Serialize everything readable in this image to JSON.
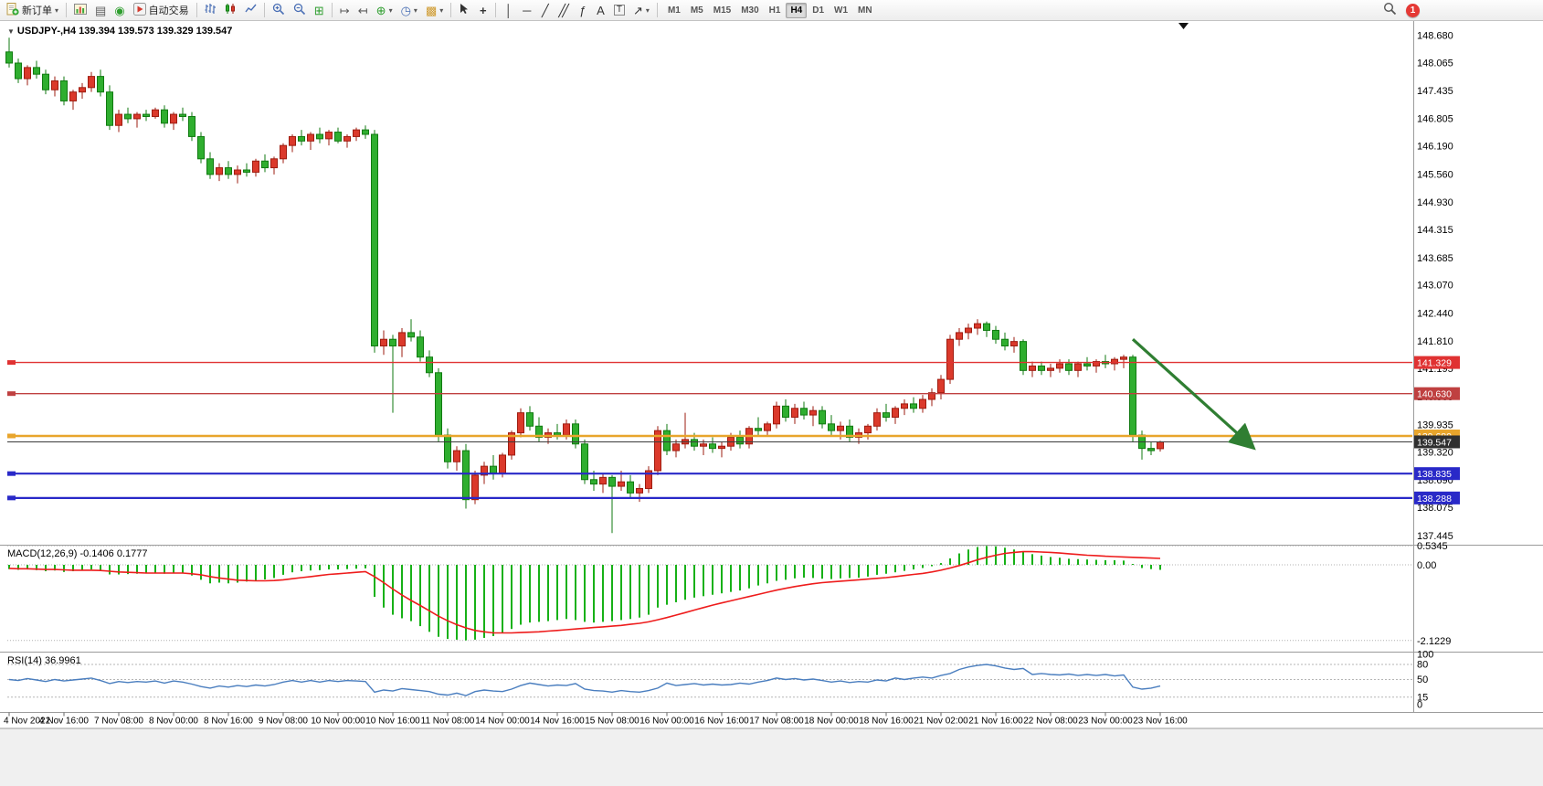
{
  "toolbar": {
    "new_order_label": "新订单",
    "autotrading_label": "自动交易",
    "timeframes": [
      "M1",
      "M5",
      "M15",
      "M30",
      "H1",
      "H4",
      "D1",
      "W1",
      "MN"
    ],
    "active_timeframe": "H4",
    "notification_count": "1"
  },
  "icons": {
    "caret": "▾",
    "collapse_triangle": "▼",
    "print": "▤",
    "sound": "◉",
    "tile": "⊞",
    "auto_scroll": "↦",
    "chart_shift": "↤",
    "indicators": "⊕",
    "clock": "◷",
    "template": "▩",
    "crosshair": "+",
    "vline": "│",
    "hline": "─",
    "trendline": "╱",
    "channel": "╱╱",
    "fibo": "ƒ",
    "text": "A",
    "text_label": "T",
    "arrow_tool": "↗"
  },
  "chart": {
    "title_line": "USDJPY-,H4 139.394 139.573 139.329 139.547",
    "symbol": "USDJPY-",
    "period": "H4"
  },
  "indicators": {
    "macd_label": "MACD(12,26,9) -0.1406 0.1777",
    "rsi_label": "RSI(14) 36.9961"
  },
  "chart_data": {
    "type": "candlestick",
    "symbol": "USDJPY-",
    "period": "H4",
    "ohlc_current": {
      "open": 139.394,
      "high": 139.573,
      "low": 139.329,
      "close": 139.547
    },
    "price_range": {
      "min": 137.3,
      "max": 148.85
    },
    "price_axis_labels": [
      "148.680",
      "148.065",
      "147.435",
      "146.805",
      "146.190",
      "145.560",
      "144.930",
      "144.315",
      "143.685",
      "143.070",
      "142.440",
      "141.810",
      "141.195",
      "140.565",
      "139.935",
      "139.320",
      "138.690",
      "138.075",
      "137.445"
    ],
    "candles": [
      [
        148.3,
        148.62,
        147.95,
        148.05
      ],
      [
        148.05,
        148.15,
        147.6,
        147.7
      ],
      [
        147.7,
        148,
        147.55,
        147.95
      ],
      [
        147.95,
        148.1,
        147.7,
        147.8
      ],
      [
        147.8,
        147.9,
        147.35,
        147.45
      ],
      [
        147.45,
        147.75,
        147.3,
        147.65
      ],
      [
        147.65,
        147.75,
        147.1,
        147.2
      ],
      [
        147.2,
        147.45,
        147,
        147.4
      ],
      [
        147.4,
        147.6,
        147.25,
        147.5
      ],
      [
        147.5,
        147.85,
        147.4,
        147.75
      ],
      [
        147.75,
        147.9,
        147.3,
        147.4
      ],
      [
        147.4,
        147.55,
        146.55,
        146.65
      ],
      [
        146.65,
        147,
        146.5,
        146.9
      ],
      [
        146.9,
        147.05,
        146.7,
        146.8
      ],
      [
        146.8,
        146.95,
        146.6,
        146.9
      ],
      [
        146.9,
        147,
        146.75,
        146.85
      ],
      [
        146.85,
        147.05,
        146.8,
        147
      ],
      [
        147,
        147.1,
        146.6,
        146.7
      ],
      [
        146.7,
        146.95,
        146.55,
        146.9
      ],
      [
        146.9,
        147.05,
        146.75,
        146.85
      ],
      [
        146.85,
        146.95,
        146.3,
        146.4
      ],
      [
        146.4,
        146.5,
        145.8,
        145.9
      ],
      [
        145.9,
        146.05,
        145.45,
        145.55
      ],
      [
        145.55,
        145.8,
        145.4,
        145.7
      ],
      [
        145.7,
        145.85,
        145.45,
        145.55
      ],
      [
        145.55,
        145.75,
        145.35,
        145.65
      ],
      [
        145.65,
        145.8,
        145.5,
        145.6
      ],
      [
        145.6,
        145.9,
        145.5,
        145.85
      ],
      [
        145.85,
        146,
        145.6,
        145.7
      ],
      [
        145.7,
        145.95,
        145.55,
        145.9
      ],
      [
        145.9,
        146.25,
        145.8,
        146.2
      ],
      [
        146.2,
        146.45,
        146.05,
        146.4
      ],
      [
        146.4,
        146.55,
        146.2,
        146.3
      ],
      [
        146.3,
        146.5,
        146.1,
        146.45
      ],
      [
        146.45,
        146.6,
        146.25,
        146.35
      ],
      [
        146.35,
        146.55,
        146.2,
        146.5
      ],
      [
        146.5,
        146.6,
        146.25,
        146.3
      ],
      [
        146.3,
        146.45,
        146.15,
        146.4
      ],
      [
        146.4,
        146.6,
        146.3,
        146.55
      ],
      [
        146.55,
        146.65,
        146.35,
        146.45
      ],
      [
        146.45,
        146.55,
        141.55,
        141.7
      ],
      [
        141.7,
        142.05,
        141.5,
        141.85
      ],
      [
        141.85,
        141.95,
        140.2,
        141.7
      ],
      [
        141.7,
        142.1,
        141.45,
        142
      ],
      [
        142,
        142.3,
        141.8,
        141.9
      ],
      [
        141.9,
        142.05,
        141.35,
        141.45
      ],
      [
        141.45,
        141.6,
        141,
        141.1
      ],
      [
        141.1,
        141.2,
        139.55,
        139.7
      ],
      [
        139.7,
        139.85,
        138.95,
        139.1
      ],
      [
        139.1,
        139.45,
        138.9,
        139.35
      ],
      [
        139.35,
        139.5,
        138.05,
        138.25
      ],
      [
        138.25,
        138.9,
        138.15,
        138.8
      ],
      [
        138.8,
        139.1,
        138.6,
        139
      ],
      [
        139,
        139.25,
        138.7,
        138.85
      ],
      [
        138.85,
        139.3,
        138.75,
        139.25
      ],
      [
        139.25,
        139.8,
        139.15,
        139.75
      ],
      [
        139.75,
        140.3,
        139.65,
        140.2
      ],
      [
        140.2,
        140.35,
        139.8,
        139.9
      ],
      [
        139.9,
        140.1,
        139.55,
        139.65
      ],
      [
        139.65,
        139.85,
        139.5,
        139.75
      ],
      [
        139.75,
        139.95,
        139.6,
        139.7
      ],
      [
        139.7,
        140.05,
        139.6,
        139.95
      ],
      [
        139.95,
        140.05,
        139.4,
        139.5
      ],
      [
        139.5,
        139.6,
        138.6,
        138.7
      ],
      [
        138.7,
        138.9,
        138.45,
        138.6
      ],
      [
        138.6,
        138.85,
        138.4,
        138.75
      ],
      [
        138.75,
        138.8,
        137.5,
        138.55
      ],
      [
        138.55,
        138.9,
        138.45,
        138.65
      ],
      [
        138.65,
        138.8,
        138.3,
        138.4
      ],
      [
        138.4,
        138.6,
        138.2,
        138.5
      ],
      [
        138.5,
        139,
        138.4,
        138.9
      ],
      [
        138.9,
        139.9,
        138.8,
        139.8
      ],
      [
        139.8,
        139.95,
        139.25,
        139.35
      ],
      [
        139.35,
        139.6,
        139.2,
        139.5
      ],
      [
        139.5,
        140.2,
        139.4,
        139.6
      ],
      [
        139.6,
        139.75,
        139.35,
        139.45
      ],
      [
        139.45,
        139.6,
        139.25,
        139.5
      ],
      [
        139.5,
        139.65,
        139.3,
        139.4
      ],
      [
        139.4,
        139.55,
        139.2,
        139.45
      ],
      [
        139.45,
        139.75,
        139.35,
        139.65
      ],
      [
        139.65,
        139.8,
        139.4,
        139.5
      ],
      [
        139.5,
        139.9,
        139.4,
        139.85
      ],
      [
        139.85,
        140.1,
        139.7,
        139.8
      ],
      [
        139.8,
        140,
        139.7,
        139.95
      ],
      [
        139.95,
        140.45,
        139.85,
        140.35
      ],
      [
        140.35,
        140.5,
        140,
        140.1
      ],
      [
        140.1,
        140.4,
        139.95,
        140.3
      ],
      [
        140.3,
        140.45,
        140.05,
        140.15
      ],
      [
        140.15,
        140.35,
        139.9,
        140.25
      ],
      [
        140.25,
        140.35,
        139.85,
        139.95
      ],
      [
        139.95,
        140.15,
        139.7,
        139.8
      ],
      [
        139.8,
        140,
        139.6,
        139.9
      ],
      [
        139.9,
        140.05,
        139.55,
        139.65
      ],
      [
        139.65,
        139.85,
        139.5,
        139.75
      ],
      [
        139.75,
        139.95,
        139.6,
        139.9
      ],
      [
        139.9,
        140.3,
        139.8,
        140.2
      ],
      [
        140.2,
        140.4,
        140,
        140.1
      ],
      [
        140.1,
        140.35,
        139.95,
        140.3
      ],
      [
        140.3,
        140.5,
        140.15,
        140.4
      ],
      [
        140.4,
        140.55,
        140.2,
        140.3
      ],
      [
        140.3,
        140.6,
        140.2,
        140.5
      ],
      [
        140.5,
        140.75,
        140.35,
        140.65
      ],
      [
        140.65,
        141.05,
        140.5,
        140.95
      ],
      [
        140.95,
        141.95,
        140.85,
        141.85
      ],
      [
        141.85,
        142.1,
        141.7,
        142
      ],
      [
        142,
        142.2,
        141.85,
        142.1
      ],
      [
        142.1,
        142.3,
        141.95,
        142.2
      ],
      [
        142.2,
        142.25,
        141.9,
        142.05
      ],
      [
        142.05,
        142.15,
        141.75,
        141.85
      ],
      [
        141.85,
        142,
        141.6,
        141.7
      ],
      [
        141.7,
        141.9,
        141.55,
        141.8
      ],
      [
        141.8,
        141.85,
        141.05,
        141.15
      ],
      [
        141.15,
        141.35,
        141,
        141.25
      ],
      [
        141.25,
        141.35,
        141.05,
        141.15
      ],
      [
        141.15,
        141.3,
        141,
        141.2
      ],
      [
        141.2,
        141.4,
        141.1,
        141.3
      ],
      [
        141.3,
        141.4,
        141.05,
        141.15
      ],
      [
        141.15,
        141.35,
        141,
        141.3
      ],
      [
        141.3,
        141.45,
        141.15,
        141.25
      ],
      [
        141.25,
        141.4,
        141.1,
        141.35
      ],
      [
        141.35,
        141.5,
        141.2,
        141.3
      ],
      [
        141.3,
        141.45,
        141.15,
        141.4
      ],
      [
        141.4,
        141.5,
        141.2,
        141.45
      ],
      [
        141.45,
        141.5,
        139.55,
        139.7
      ],
      [
        139.7,
        139.8,
        139.15,
        139.4
      ],
      [
        139.4,
        139.55,
        139.25,
        139.35
      ],
      [
        139.394,
        139.573,
        139.329,
        139.547
      ]
    ],
    "hlines": [
      {
        "price": 141.329,
        "label": "141.329",
        "color": "#e03232",
        "width": 1.4
      },
      {
        "price": 140.63,
        "label": "140.630",
        "color": "#bf4040",
        "width": 1.4
      },
      {
        "price": 139.68,
        "label": "139.680",
        "color": "#e8a52c",
        "width": 2.4
      },
      {
        "price": 138.835,
        "label": "138.835",
        "color": "#2929c8",
        "width": 2.2
      },
      {
        "price": 138.288,
        "label": "138.288",
        "color": "#2929c8",
        "width": 2.2
      }
    ],
    "current_price_line": {
      "price": 139.547,
      "label": "139.547",
      "color": "#3a3a3a",
      "tag_bg": "#2f2f2f"
    },
    "arrow": {
      "from_bar": 123,
      "from_price": 141.85,
      "to_bar": 136,
      "to_price": 139.45,
      "color": "#2f7e32"
    },
    "macd": {
      "histogram": [
        -0.12,
        -0.14,
        -0.13,
        -0.15,
        -0.18,
        -0.16,
        -0.2,
        -0.18,
        -0.15,
        -0.13,
        -0.17,
        -0.27,
        -0.27,
        -0.26,
        -0.25,
        -0.24,
        -0.22,
        -0.25,
        -0.24,
        -0.23,
        -0.3,
        -0.42,
        -0.52,
        -0.5,
        -0.52,
        -0.5,
        -0.47,
        -0.44,
        -0.41,
        -0.37,
        -0.28,
        -0.21,
        -0.18,
        -0.16,
        -0.15,
        -0.13,
        -0.13,
        -0.12,
        -0.11,
        -0.1,
        -0.9,
        -1.2,
        -1.4,
        -1.5,
        -1.58,
        -1.72,
        -1.88,
        -2.02,
        -2.08,
        -2.1,
        -2.12,
        -2.1,
        -2.05,
        -2,
        -1.92,
        -1.8,
        -1.68,
        -1.62,
        -1.6,
        -1.58,
        -1.55,
        -1.52,
        -1.55,
        -1.6,
        -1.62,
        -1.6,
        -1.58,
        -1.55,
        -1.52,
        -1.48,
        -1.4,
        -1.2,
        -1.12,
        -1.05,
        -0.98,
        -0.92,
        -0.88,
        -0.84,
        -0.8,
        -0.76,
        -0.72,
        -0.66,
        -0.58,
        -0.52,
        -0.45,
        -0.42,
        -0.38,
        -0.36,
        -0.37,
        -0.39,
        -0.4,
        -0.38,
        -0.37,
        -0.36,
        -0.33,
        -0.28,
        -0.25,
        -0.21,
        -0.17,
        -0.13,
        -0.09,
        -0.04,
        0.05,
        0.18,
        0.32,
        0.43,
        0.5,
        0.53,
        0.52,
        0.48,
        0.43,
        0.36,
        0.3,
        0.26,
        0.22,
        0.2,
        0.17,
        0.16,
        0.15,
        0.14,
        0.13,
        0.13,
        0.12,
        0,
        -0.09,
        -0.12,
        -0.1406
      ],
      "signal": [
        -0.1,
        -0.11,
        -0.11,
        -0.12,
        -0.13,
        -0.13,
        -0.14,
        -0.15,
        -0.15,
        -0.15,
        -0.16,
        -0.18,
        -0.2,
        -0.21,
        -0.22,
        -0.23,
        -0.23,
        -0.23,
        -0.23,
        -0.23,
        -0.25,
        -0.28,
        -0.33,
        -0.37,
        -0.4,
        -0.43,
        -0.44,
        -0.45,
        -0.45,
        -0.44,
        -0.42,
        -0.39,
        -0.36,
        -0.33,
        -0.3,
        -0.27,
        -0.25,
        -0.23,
        -0.21,
        -0.19,
        -0.33,
        -0.5,
        -0.68,
        -0.85,
        -1,
        -1.14,
        -1.29,
        -1.44,
        -1.57,
        -1.68,
        -1.77,
        -1.84,
        -1.88,
        -1.91,
        -1.91,
        -1.91,
        -1.9,
        -1.89,
        -1.88,
        -1.86,
        -1.84,
        -1.82,
        -1.8,
        -1.78,
        -1.76,
        -1.74,
        -1.72,
        -1.7,
        -1.67,
        -1.64,
        -1.6,
        -1.54,
        -1.48,
        -1.41,
        -1.34,
        -1.27,
        -1.2,
        -1.13,
        -1.07,
        -1.01,
        -0.95,
        -0.89,
        -0.83,
        -0.77,
        -0.71,
        -0.66,
        -0.61,
        -0.57,
        -0.53,
        -0.5,
        -0.48,
        -0.46,
        -0.44,
        -0.42,
        -0.4,
        -0.38,
        -0.36,
        -0.33,
        -0.3,
        -0.27,
        -0.24,
        -0.2,
        -0.15,
        -0.09,
        -0.02,
        0.06,
        0.14,
        0.21,
        0.27,
        0.32,
        0.35,
        0.37,
        0.37,
        0.36,
        0.35,
        0.33,
        0.31,
        0.29,
        0.27,
        0.26,
        0.24,
        0.23,
        0.22,
        0.21,
        0.2,
        0.19,
        0.18
      ],
      "axis_labels": [
        {
          "value": 0.5345,
          "label": "0.5345"
        },
        {
          "value": 0,
          "label": "0.00"
        },
        {
          "value": -2.1229,
          "label": "-2.1229"
        }
      ]
    },
    "rsi": {
      "values": [
        50,
        48,
        52,
        49,
        46,
        50,
        47,
        49,
        51,
        53,
        48,
        42,
        46,
        44,
        46,
        45,
        47,
        43,
        47,
        45,
        41,
        36,
        33,
        37,
        35,
        38,
        36,
        39,
        37,
        40,
        45,
        48,
        45,
        48,
        45,
        48,
        46,
        48,
        47,
        46,
        25,
        29,
        27,
        32,
        30,
        28,
        26,
        21,
        19,
        23,
        18,
        26,
        29,
        27,
        26,
        31,
        38,
        43,
        40,
        37,
        39,
        38,
        42,
        31,
        28,
        27,
        25,
        28,
        26,
        25,
        28,
        33,
        43,
        38,
        40,
        42,
        39,
        41,
        39,
        40,
        43,
        41,
        45,
        48,
        53,
        50,
        52,
        49,
        51,
        48,
        45,
        47,
        44,
        46,
        45,
        49,
        47,
        53,
        50,
        53,
        55,
        53,
        58,
        62,
        70,
        75,
        78,
        80,
        77,
        73,
        70,
        72,
        60,
        62,
        60,
        59,
        61,
        58,
        60,
        58,
        60,
        57,
        59,
        35,
        31,
        33,
        37
      ],
      "axis_labels": [
        {
          "value": 100,
          "label": "100"
        },
        {
          "value": 80,
          "label": "80"
        },
        {
          "value": 50,
          "label": "50"
        },
        {
          "value": 15,
          "label": "15"
        },
        {
          "value": 0,
          "label": "0"
        }
      ],
      "level_lines": [
        80,
        50,
        15
      ]
    },
    "time_labels": [
      "4 Nov 2022",
      "4 Nov 16:00",
      "7 Nov 08:00",
      "8 Nov 00:00",
      "8 Nov 16:00",
      "9 Nov 08:00",
      "10 Nov 00:00",
      "10 Nov 16:00",
      "11 Nov 08:00",
      "14 Nov 00:00",
      "14 Nov 16:00",
      "15 Nov 08:00",
      "16 Nov 00:00",
      "16 Nov 16:00",
      "17 Nov 08:00",
      "18 Nov 00:00",
      "18 Nov 16:00",
      "21 Nov 02:00",
      "21 Nov 16:00",
      "22 Nov 08:00",
      "23 Nov 00:00",
      "23 Nov 16:00"
    ],
    "colors": {
      "bull": "#db392b",
      "bull_border": "#9e1c10",
      "bear": "#2fae2f",
      "bear_border": "#107a10",
      "macd_hist": "#17b117",
      "macd_signal": "#ee1c1c",
      "rsi": "#4a7ebf",
      "axis_text": "#000000",
      "grid": "#9b9b9b"
    }
  }
}
